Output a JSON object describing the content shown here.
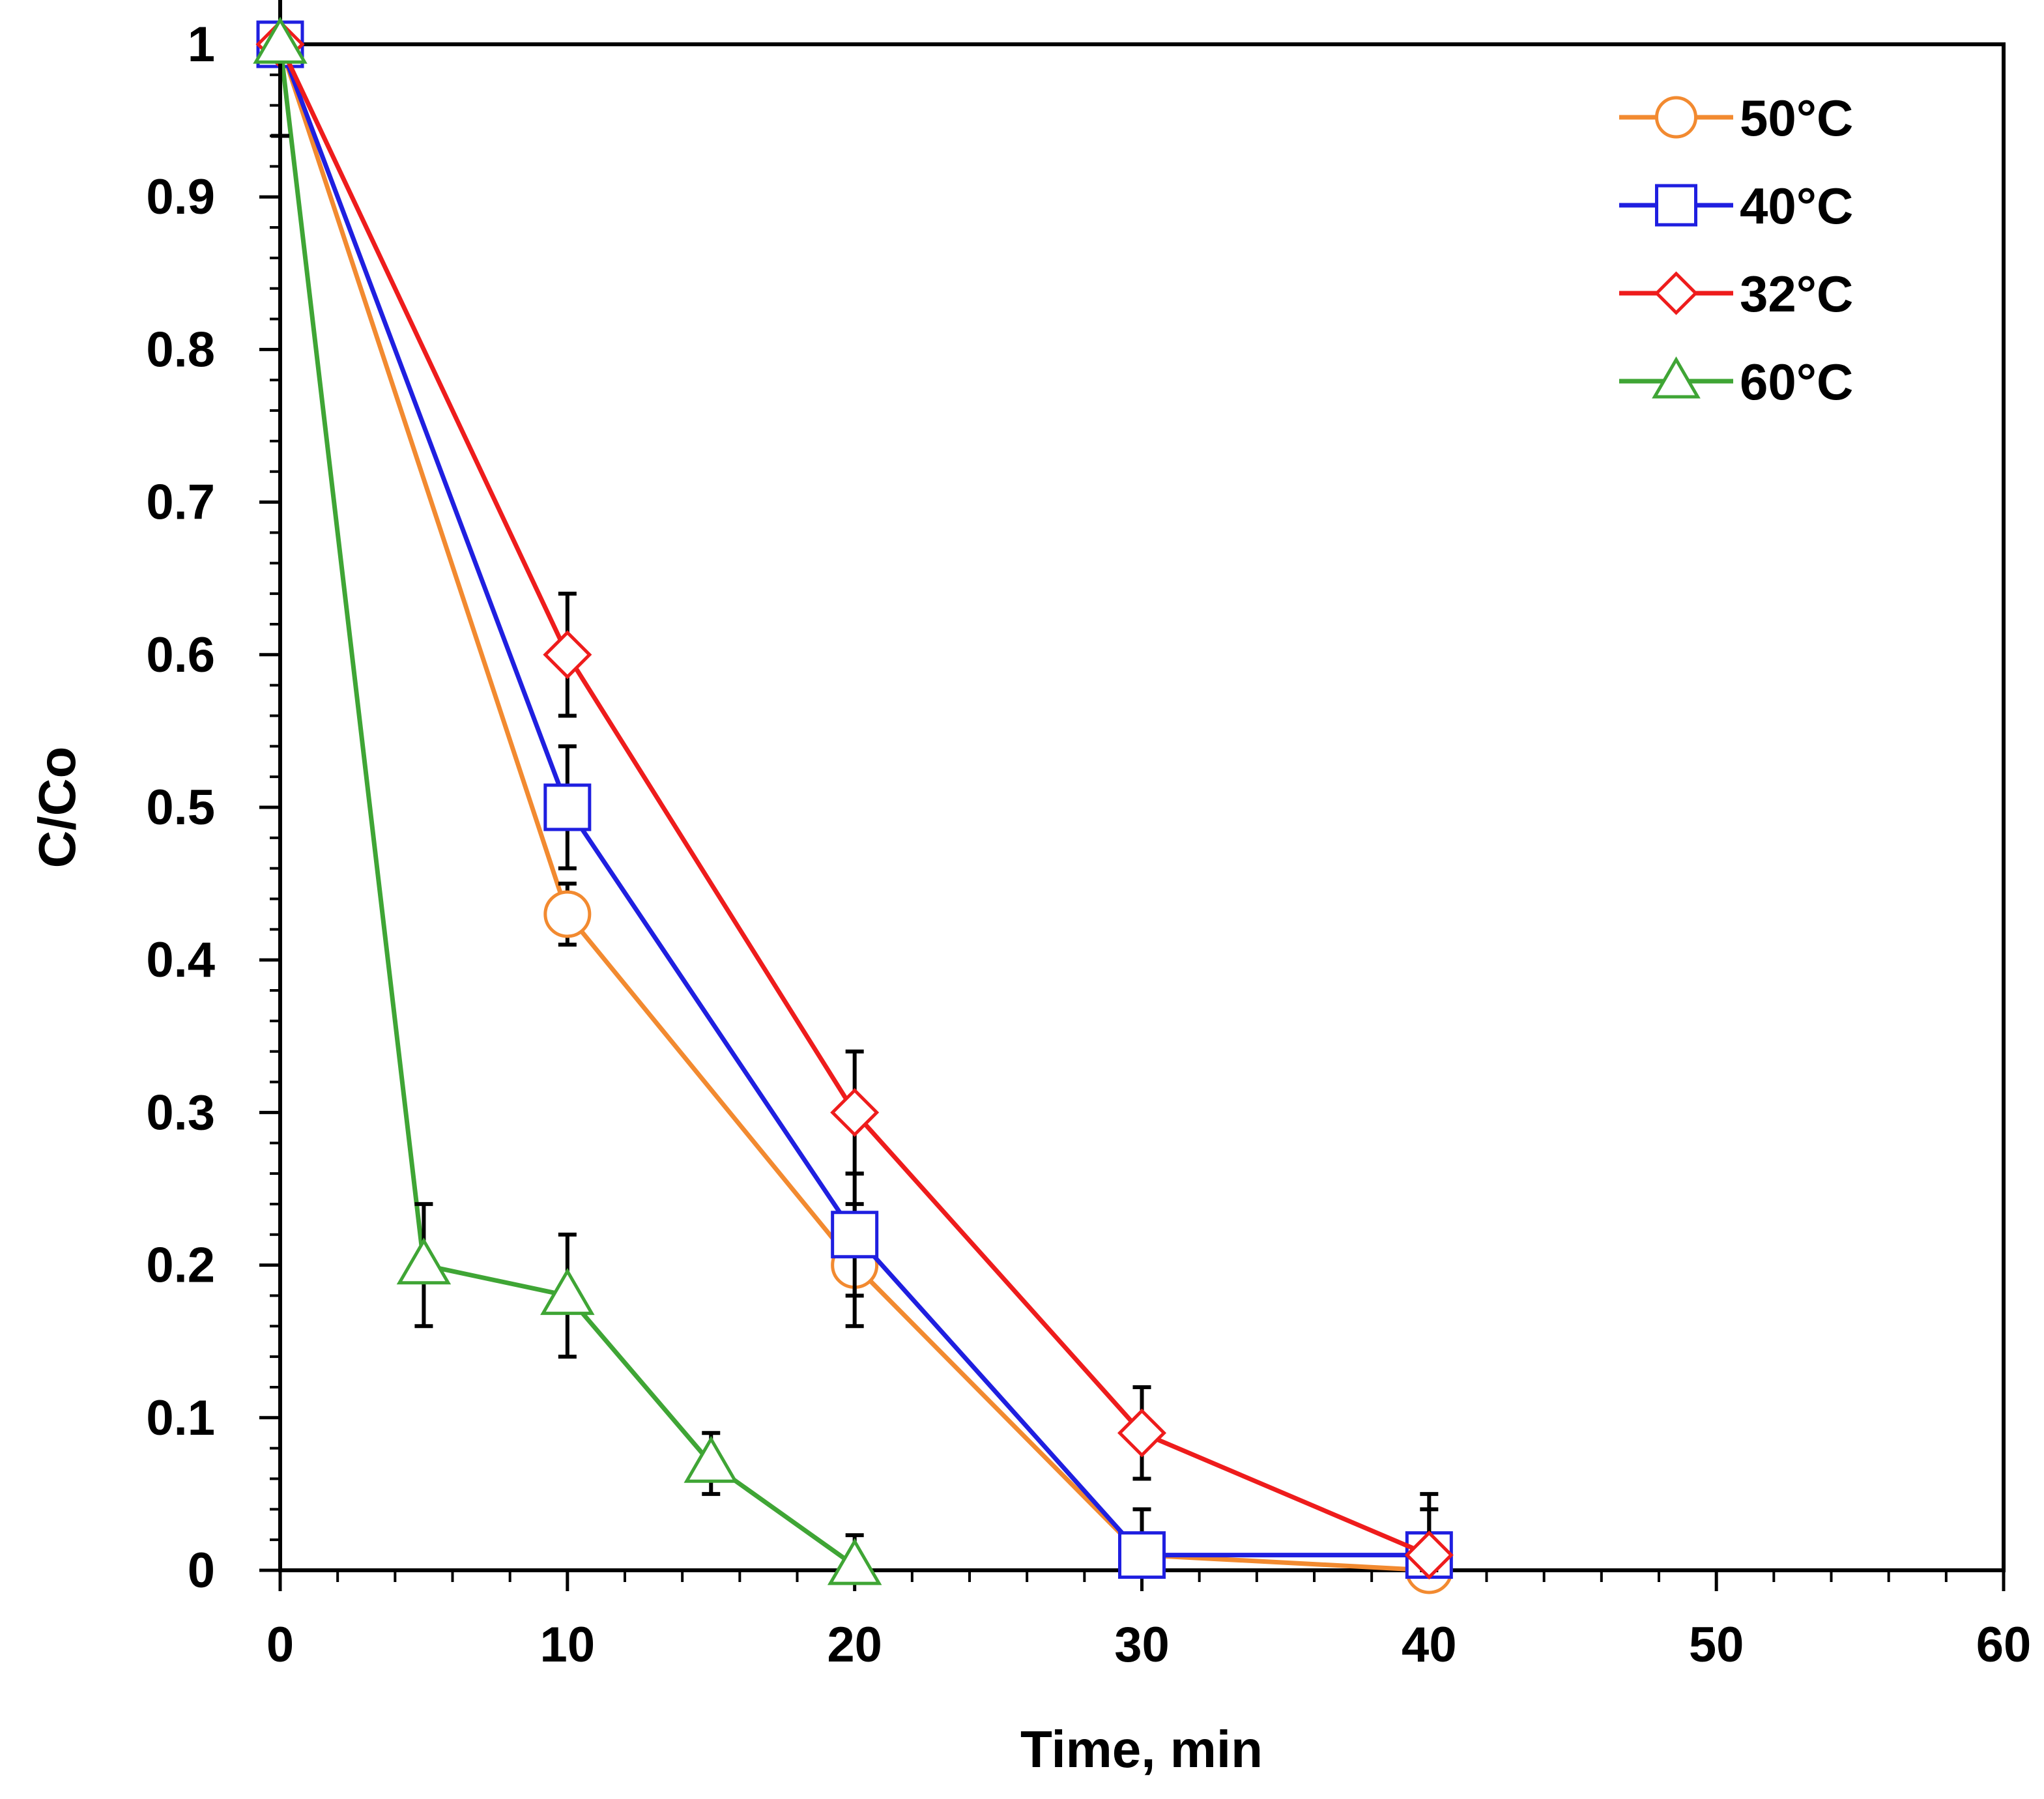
{
  "chart_data": {
    "type": "line",
    "title": "",
    "xlabel": "Time, min",
    "ylabel": "C/Co",
    "xlim": [
      0,
      60
    ],
    "ylim": [
      0,
      1
    ],
    "x_ticks": [
      0,
      10,
      20,
      30,
      40,
      50,
      60
    ],
    "x_tick_labels": [
      "0",
      "10",
      "20",
      "30",
      "40",
      "50",
      "60"
    ],
    "y_ticks": [
      0,
      0.1,
      0.2,
      0.3,
      0.4,
      0.5,
      0.6,
      0.7,
      0.8,
      0.9,
      1
    ],
    "y_tick_labels": [
      "0",
      "0.1",
      "0.2",
      "0.3",
      "0.4",
      "0.5",
      "0.6",
      "0.7",
      "0.8",
      "0.9",
      "1"
    ],
    "grid": false,
    "legend_position": "top-right",
    "series": [
      {
        "name": "50°C",
        "color": "#F28A30",
        "marker": "circle",
        "x": [
          0,
          10,
          20,
          30,
          40
        ],
        "y": [
          1.0,
          0.43,
          0.2,
          0.01,
          0.0
        ],
        "error": [
          0.0,
          0.02,
          0.04,
          0.0,
          0.0
        ]
      },
      {
        "name": "40°C",
        "color": "#1F1FE0",
        "marker": "square",
        "x": [
          0,
          10,
          20,
          30,
          40
        ],
        "y": [
          1.0,
          0.5,
          0.22,
          0.01,
          0.01
        ],
        "error": [
          0.0,
          0.04,
          0.04,
          0.03,
          0.03
        ]
      },
      {
        "name": "32°C",
        "color": "#EE1C1C",
        "marker": "diamond",
        "x": [
          0,
          10,
          20,
          30,
          40
        ],
        "y": [
          1.0,
          0.6,
          0.3,
          0.09,
          0.01
        ],
        "error": [
          0.0,
          0.04,
          0.04,
          0.03,
          0.04
        ]
      },
      {
        "name": "60°C",
        "color": "#3FA535",
        "marker": "triangle",
        "x": [
          0,
          5,
          10,
          15,
          20
        ],
        "y": [
          1.0,
          0.2,
          0.18,
          0.07,
          0.003
        ],
        "error": [
          0.06,
          0.04,
          0.04,
          0.02,
          0.02
        ]
      }
    ]
  }
}
